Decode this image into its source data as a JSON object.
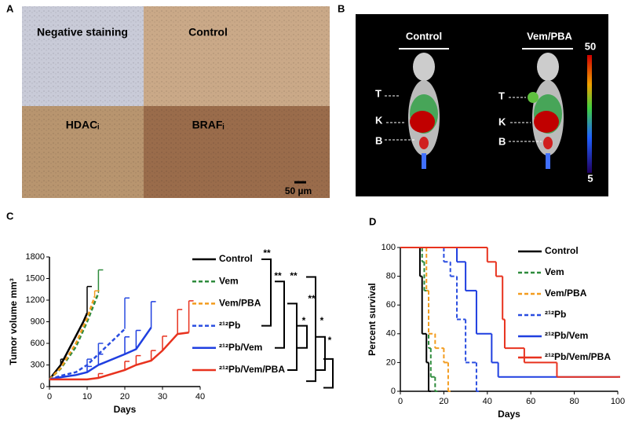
{
  "panels": {
    "A": {
      "letter": "A",
      "labels": [
        "Negative staining",
        "Control",
        "HDACᵢ",
        "BRAFᵢ"
      ],
      "scale_bar": "50 µm"
    },
    "B": {
      "letter": "B",
      "groups": [
        "Control",
        "Vem/PBA"
      ],
      "organs": [
        "T",
        "K",
        "B"
      ],
      "colorbar_max": 50,
      "colorbar_min": 5
    },
    "C": {
      "letter": "C"
    },
    "D": {
      "letter": "D"
    }
  },
  "chart_data": [
    {
      "type": "line",
      "xlabel": "Days",
      "ylabel": "Tumor volume mm³",
      "xlim": [
        0,
        40
      ],
      "xticks": [
        0,
        10,
        20,
        30,
        40
      ],
      "ylim": [
        0,
        1800
      ],
      "yticks": [
        0,
        300,
        600,
        900,
        1200,
        1500,
        1800
      ],
      "annotations": [
        "**",
        "**",
        "**",
        "*",
        "**",
        "*",
        "*"
      ],
      "series": [
        {
          "name": "Control",
          "color": "#000000",
          "dash": false,
          "x": [
            0,
            3,
            6,
            9,
            10
          ],
          "values": [
            100,
            300,
            600,
            900,
            1020
          ],
          "errors": [
            null,
            80,
            null,
            null,
            370
          ]
        },
        {
          "name": "Vem",
          "color": "#2e8b3c",
          "dash": true,
          "x": [
            0,
            3,
            7,
            10,
            13
          ],
          "values": [
            100,
            250,
            550,
            900,
            1300
          ],
          "errors": [
            null,
            null,
            null,
            null,
            320
          ]
        },
        {
          "name": "Vem/PBA",
          "color": "#f39c1f",
          "dash": true,
          "x": [
            0,
            3,
            7,
            10,
            12
          ],
          "values": [
            100,
            260,
            600,
            950,
            1250
          ],
          "errors": [
            null,
            null,
            null,
            null,
            80
          ]
        },
        {
          "name": "²¹²Pb",
          "color": "#2a4de0",
          "dash": true,
          "x": [
            0,
            3,
            7,
            10,
            13,
            20
          ],
          "values": [
            100,
            150,
            200,
            300,
            450,
            800
          ],
          "errors": [
            null,
            null,
            null,
            80,
            150,
            430
          ]
        },
        {
          "name": "²¹²Pb/Vem",
          "color": "#1f3fe0",
          "dash": false,
          "x": [
            0,
            3,
            7,
            10,
            13,
            20,
            23,
            27
          ],
          "values": [
            100,
            130,
            160,
            200,
            300,
            450,
            520,
            820
          ],
          "errors": [
            null,
            null,
            null,
            80,
            150,
            240,
            260,
            360
          ]
        },
        {
          "name": "²¹²Pb/Vem/PBA",
          "color": "#e8321e",
          "dash": false,
          "x": [
            0,
            7,
            10,
            13,
            20,
            23,
            27,
            30,
            34,
            37
          ],
          "values": [
            100,
            100,
            100,
            120,
            230,
            300,
            360,
            500,
            730,
            750
          ],
          "errors": [
            null,
            null,
            null,
            60,
            120,
            130,
            140,
            200,
            340,
            440
          ]
        }
      ]
    },
    {
      "type": "step",
      "xlabel": "Days",
      "ylabel": "Percent survival",
      "xlim": [
        0,
        100
      ],
      "xticks": [
        0,
        20,
        40,
        60,
        80,
        100
      ],
      "ylim": [
        0,
        100
      ],
      "yticks": [
        0,
        20,
        40,
        60,
        80,
        100
      ],
      "series": [
        {
          "name": "Control",
          "color": "#000000",
          "dash": false,
          "x": [
            0,
            9,
            10,
            12,
            13
          ],
          "values": [
            100,
            80,
            40,
            20,
            0
          ]
        },
        {
          "name": "Vem",
          "color": "#2e8b3c",
          "dash": true,
          "x": [
            0,
            10,
            11,
            13,
            14,
            16
          ],
          "values": [
            100,
            90,
            70,
            30,
            10,
            0
          ]
        },
        {
          "name": "Vem/PBA",
          "color": "#f39c1f",
          "dash": true,
          "x": [
            0,
            12,
            13,
            16,
            20,
            22
          ],
          "values": [
            100,
            70,
            40,
            30,
            20,
            0
          ]
        },
        {
          "name": "²¹²Pb",
          "color": "#2a4de0",
          "dash": true,
          "x": [
            0,
            20,
            23,
            26,
            30,
            35
          ],
          "values": [
            100,
            90,
            80,
            50,
            20,
            0
          ]
        },
        {
          "name": "²¹²Pb/Vem",
          "color": "#1f3fe0",
          "dash": false,
          "x": [
            0,
            26,
            30,
            35,
            42,
            45,
            100
          ],
          "values": [
            100,
            90,
            70,
            40,
            20,
            10,
            10
          ]
        },
        {
          "name": "²¹²Pb/Vem/PBA",
          "color": "#e8321e",
          "dash": false,
          "x": [
            0,
            40,
            44,
            47,
            48,
            57,
            72,
            100
          ],
          "values": [
            100,
            90,
            80,
            50,
            30,
            20,
            10,
            10
          ]
        }
      ]
    }
  ]
}
